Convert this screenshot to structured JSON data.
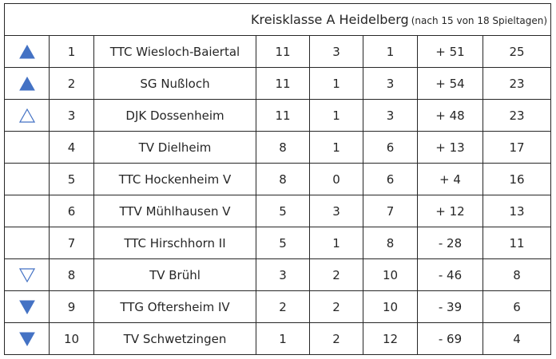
{
  "header": {
    "title": "Kreisklasse A Heidelberg",
    "subtitle": "(nach 15 von 18 Spieltagen)"
  },
  "colors": {
    "accent": "#4472c4",
    "text": "#262626",
    "border": "#262626"
  },
  "rows": [
    {
      "indicator": "up-filled",
      "rank": "1",
      "team": "TTC Wiesloch-Baiertal",
      "wins": "11",
      "draws": "3",
      "losses": "1",
      "diff": "+ 51",
      "points": "25"
    },
    {
      "indicator": "up-filled",
      "rank": "2",
      "team": "SG Nußloch",
      "wins": "11",
      "draws": "1",
      "losses": "3",
      "diff": "+ 54",
      "points": "23"
    },
    {
      "indicator": "up-outline",
      "rank": "3",
      "team": "DJK Dossenheim",
      "wins": "11",
      "draws": "1",
      "losses": "3",
      "diff": "+ 48",
      "points": "23"
    },
    {
      "indicator": "none",
      "rank": "4",
      "team": "TV Dielheim",
      "wins": "8",
      "draws": "1",
      "losses": "6",
      "diff": "+ 13",
      "points": "17"
    },
    {
      "indicator": "none",
      "rank": "5",
      "team": "TTC Hockenheim V",
      "wins": "8",
      "draws": "0",
      "losses": "6",
      "diff": "+ 4",
      "points": "16"
    },
    {
      "indicator": "none",
      "rank": "6",
      "team": "TTV Mühlhausen V",
      "wins": "5",
      "draws": "3",
      "losses": "7",
      "diff": "+ 12",
      "points": "13"
    },
    {
      "indicator": "none",
      "rank": "7",
      "team": "TTC Hirschhorn II",
      "wins": "5",
      "draws": "1",
      "losses": "8",
      "diff": "- 28",
      "points": "11"
    },
    {
      "indicator": "down-outline",
      "rank": "8",
      "team": "TV Brühl",
      "wins": "3",
      "draws": "2",
      "losses": "10",
      "diff": "- 46",
      "points": "8"
    },
    {
      "indicator": "down-filled",
      "rank": "9",
      "team": "TTG Oftersheim IV",
      "wins": "2",
      "draws": "2",
      "losses": "10",
      "diff": "- 39",
      "points": "6"
    },
    {
      "indicator": "down-filled",
      "rank": "10",
      "team": "TV Schwetzingen",
      "wins": "1",
      "draws": "2",
      "losses": "12",
      "diff": "- 69",
      "points": "4"
    }
  ]
}
